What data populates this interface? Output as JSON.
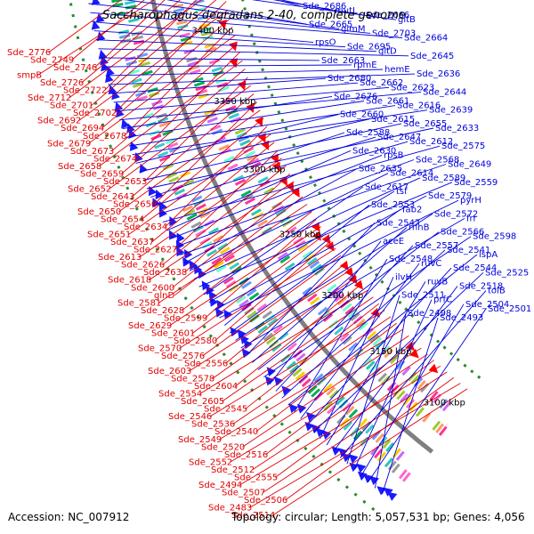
{
  "title": "Saccharophagus degradans 2-40, complete genome",
  "accession": "Accession: NC_007912",
  "summary": "Topology: circular; Length: 5,057,531 bp; Genes: 4,056",
  "colors": {
    "reverse_label": "#e00000",
    "forward_label": "#0000dd",
    "backbone": "#808080",
    "tick": "#2a8a2a",
    "reverse_arrow": "#ff0000",
    "forward_arrow": "#1a1aff"
  },
  "position_labels": [
    "3450 kbp",
    "3400 kbp",
    "3350 kbp",
    "3300 kbp",
    "3250 kbp",
    "3200 kbp",
    "3150 kbp",
    "3100 kbp"
  ],
  "reverse_labels": [
    "Sde_2776",
    "Sde_2749",
    "Sde_2746",
    "smpB",
    "Sde_2726",
    "Sde_2722",
    "Sde_2712",
    "Sde_2701",
    "Sde_2702",
    "Sde_2692",
    "Sde_2694",
    "Sde_2678",
    "Sde_2679",
    "Sde_2673",
    "Sde_2674",
    "Sde_2658",
    "Sde_2659",
    "Sde_2653",
    "Sde_2652",
    "Sde_2643",
    "Sde_2656",
    "Sde_2650",
    "Sde_2654",
    "Sde_2634",
    "Sde_2651",
    "Sde_2637",
    "Sde_2627",
    "Sde_2613",
    "Sde_2626",
    "Sde_2638",
    "Sde_2618",
    "Sde_2600",
    "glnD",
    "Sde_2581",
    "Sde_2628",
    "Sde_2599",
    "Sde_2629",
    "Sde_2601",
    "Sde_2580",
    "Sde_2570",
    "Sde_2576",
    "Sde_2556",
    "Sde_2603",
    "Sde_2578",
    "Sde_2604",
    "Sde_2554",
    "Sde_2605",
    "Sde_2545",
    "Sde_2546",
    "Sde_2536",
    "Sde_2540",
    "Sde_2549",
    "Sde_2520",
    "Sde_2516",
    "Sde_2552",
    "Sde_2512",
    "Sde_2555",
    "Sde_2494",
    "Sde_2507",
    "Sde_2506",
    "Sde_2483",
    "Sde_2514"
  ],
  "forward_labels": [
    "Sde_2686",
    "mutL",
    "Sde_2666",
    "gltB",
    "Sde_2665",
    "glmM",
    "Sde_2703",
    "Sde_2664",
    "rpsO",
    "Sde_2695",
    "gltD",
    "Sde_2645",
    "Sde_2663",
    "rpmE",
    "hemE",
    "Sde_2636",
    "Sde_2680",
    "Sde_2662",
    "Sde_2623",
    "Sde_2644",
    "Sde_2676",
    "Sde_2661",
    "Sde_2616",
    "Sde_2639",
    "Sde_2660",
    "Sde_2615",
    "Sde_2655",
    "Sde_2633",
    "Sde_2588",
    "Sde_2647",
    "Sde_2612",
    "Sde_2575",
    "Sde_2630",
    "rpsB",
    "Sde_2568",
    "Sde_2649",
    "Sde_2635",
    "Sde_2614",
    "Sde_2589",
    "Sde_2559",
    "Sde_2617",
    "tsf",
    "Sde_2579",
    "pyrH",
    "Sde_2553",
    "fab2",
    "Sde_2572",
    "frr",
    "Sde_2547",
    "rnhB",
    "Sde_2566",
    "Sde_2598",
    "aceE",
    "Sde_2557",
    "Sde_2541",
    "lspA",
    "Sde_2548",
    "ruvC",
    "Sde_2544",
    "Sde_2525",
    "ilvH",
    "ruvB",
    "Sde_2518",
    "tolB",
    "Sde_2511",
    "prfC",
    "Sde_2504",
    "Sde_2501",
    "Sde_2498",
    "Sde_2493"
  ]
}
